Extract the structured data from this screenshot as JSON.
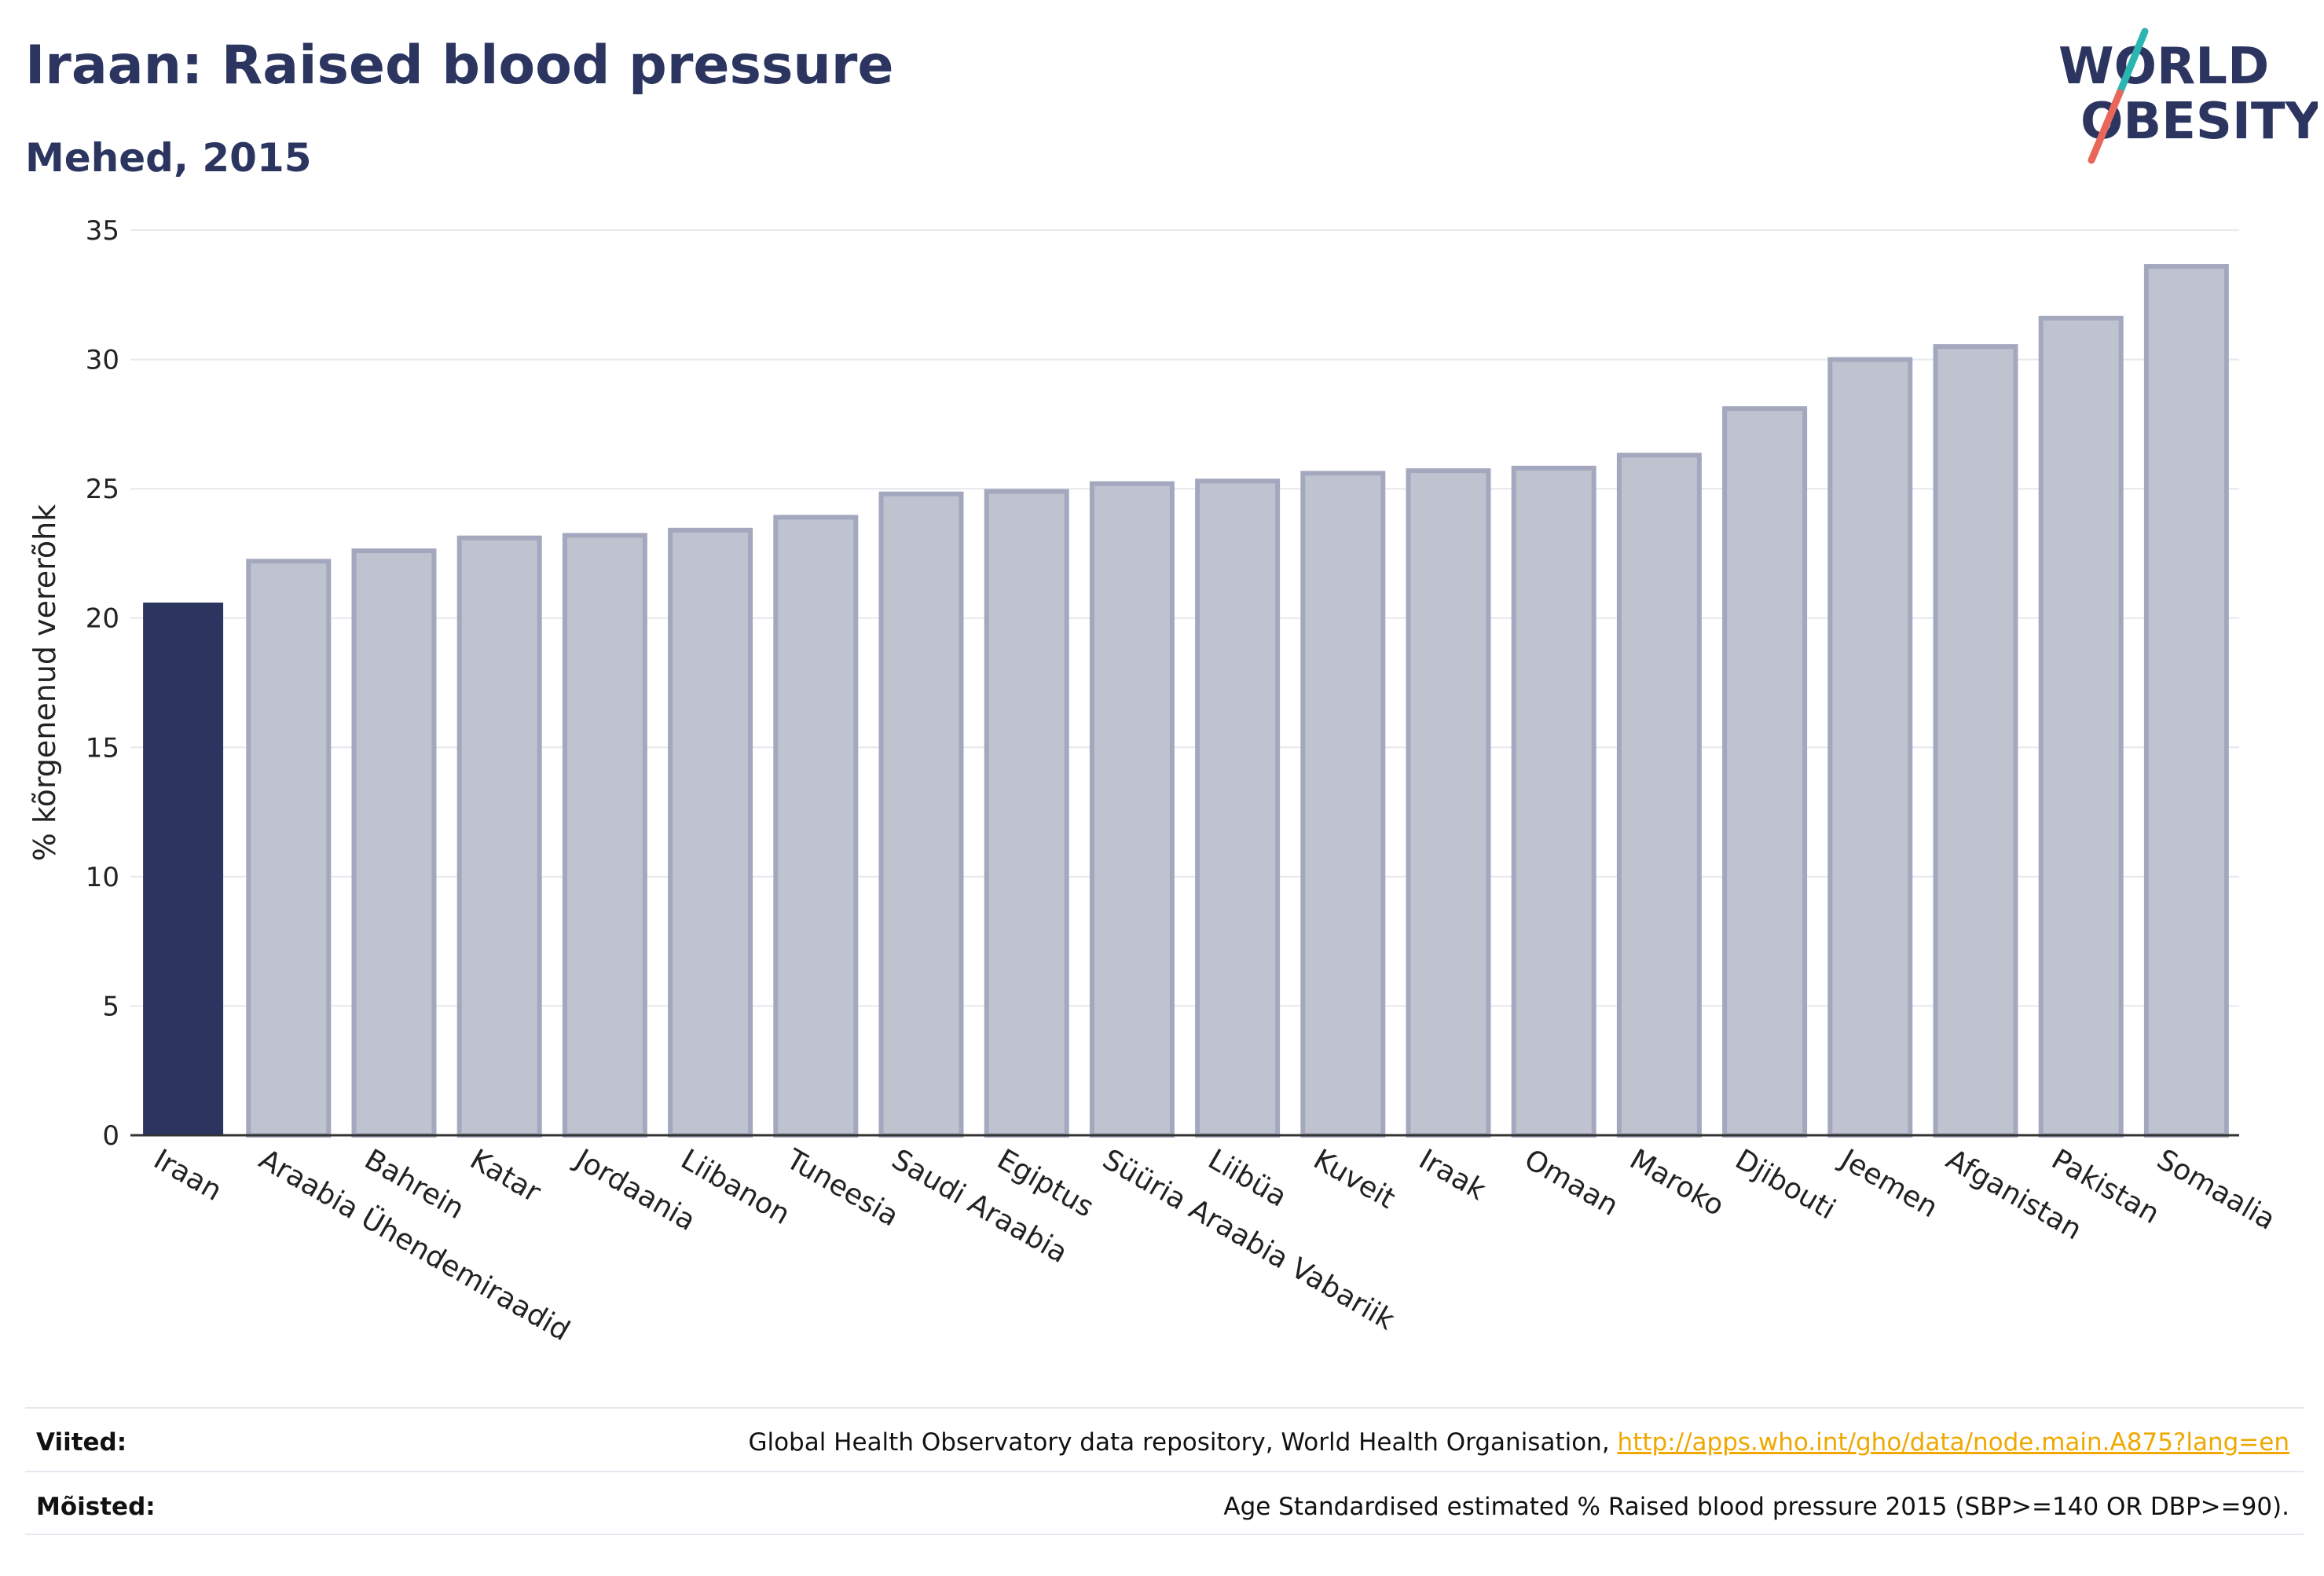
{
  "header": {
    "title": "Iraan: Raised blood pressure",
    "subtitle": "Mehed, 2015"
  },
  "logo": {
    "line1": "WORLD",
    "line2": "OBESITY",
    "colors": {
      "text": "#2b3560",
      "slash_top": "#2bb5b0",
      "slash_bottom": "#e8675a"
    }
  },
  "chart_data": {
    "type": "bar",
    "title": "Iraan: Raised blood pressure",
    "subtitle": "Mehed, 2015",
    "xlabel": "",
    "ylabel": "% kõrgenenud vererõhk",
    "ylim": [
      0,
      35
    ],
    "yticks": [
      0,
      5,
      10,
      15,
      20,
      25,
      30,
      35
    ],
    "grid": true,
    "categories": [
      "Iraan",
      "Araabia Ühendemiraadid",
      "Bahrein",
      "Katar",
      "Jordaania",
      "Liibanon",
      "Tuneesia",
      "Saudi Araabia",
      "Egiptus",
      "Süüria Araabia Vabariik",
      "Liibüa",
      "Kuveit",
      "Iraak",
      "Omaan",
      "Maroko",
      "Djibouti",
      "Jeemen",
      "Afganistan",
      "Pakistan",
      "Somaalia"
    ],
    "values": [
      20.6,
      22.2,
      22.6,
      23.1,
      23.2,
      23.4,
      23.9,
      24.8,
      24.9,
      25.2,
      25.3,
      25.6,
      25.7,
      25.8,
      26.3,
      28.1,
      30.0,
      30.5,
      31.6,
      33.6
    ],
    "highlight_index": 0,
    "colors": {
      "highlight": "#2b3560",
      "bar_fill": "#bfc2cf",
      "bar_stroke": "#a3a8be",
      "grid": "#e8e8ee",
      "axis": "#333333"
    }
  },
  "footer": {
    "sources_label": "Viited:",
    "sources_text": "Global Health Observatory data repository, World Health Organisation, ",
    "sources_link": "http://apps.who.int/gho/data/node.main.A875?lang=en",
    "definitions_label": "Mõisted:",
    "definitions_text": "Age Standardised estimated % Raised blood pressure 2015 (SBP>=140 OR DBP>=90)."
  }
}
